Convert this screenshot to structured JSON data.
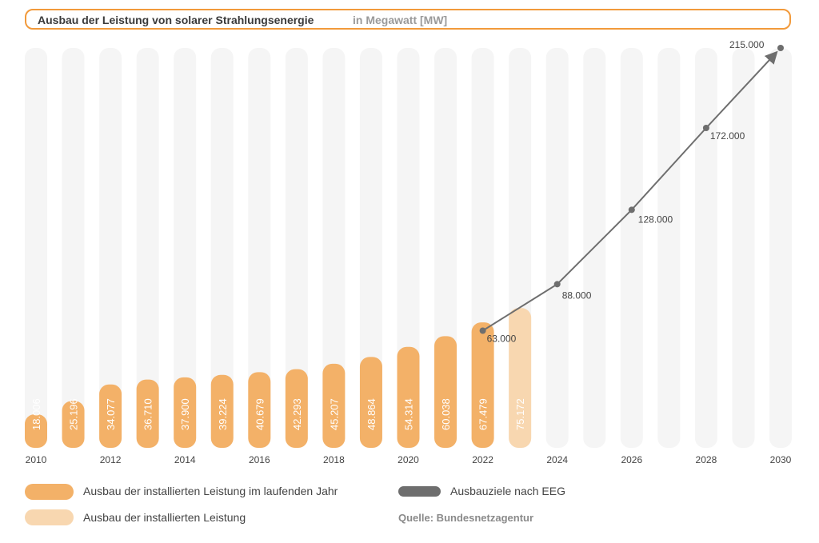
{
  "title": "Ausbau der Leistung von solarer Strahlungsenergie",
  "unit": "in Megawatt [MW]",
  "chart_data": {
    "type": "bar",
    "years": [
      2010,
      2011,
      2012,
      2013,
      2014,
      2015,
      2016,
      2017,
      2018,
      2019,
      2020,
      2021,
      2022,
      2023,
      2024,
      2025,
      2026,
      2027,
      2028,
      2029,
      2030
    ],
    "tick_labels": [
      "2010",
      "2012",
      "2014",
      "2016",
      "2018",
      "2020",
      "2022",
      "2024",
      "2026",
      "2028",
      "2030"
    ],
    "ylim": [
      0,
      215000
    ],
    "series": [
      {
        "name": "Ausbau der installierten Leistung im laufenden Jahr",
        "type": "bar",
        "color": "#f3b168",
        "x": [
          2010,
          2011,
          2012,
          2013,
          2014,
          2015,
          2016,
          2017,
          2018,
          2019,
          2020,
          2021,
          2022
        ],
        "values": [
          18006,
          25196,
          34077,
          36710,
          37900,
          39224,
          40679,
          42293,
          45207,
          48864,
          54314,
          60038,
          67479
        ],
        "labels": [
          "18.006",
          "25.196",
          "34.077",
          "36.710",
          "37.900",
          "39.224",
          "40.679",
          "42.293",
          "45.207",
          "48.864",
          "54.314",
          "60.038",
          "67.479"
        ]
      },
      {
        "name": "Ausbau der installierten Leistung",
        "type": "bar",
        "color": "#f8d7b0",
        "x": [
          2023
        ],
        "values": [
          75172
        ],
        "labels": [
          "75.172"
        ]
      },
      {
        "name": "Ausbauziele nach EEG",
        "type": "line",
        "color": "#6e6e6e",
        "x": [
          2022,
          2024,
          2026,
          2028,
          2030
        ],
        "values": [
          63000,
          88000,
          128000,
          172000,
          215000
        ],
        "labels": [
          "63.000",
          "88.000",
          "128.000",
          "172.000",
          "215.000"
        ]
      }
    ],
    "background_bars_color": "#f5f5f5"
  },
  "source": "Quelle: Bundesnetzagentur"
}
